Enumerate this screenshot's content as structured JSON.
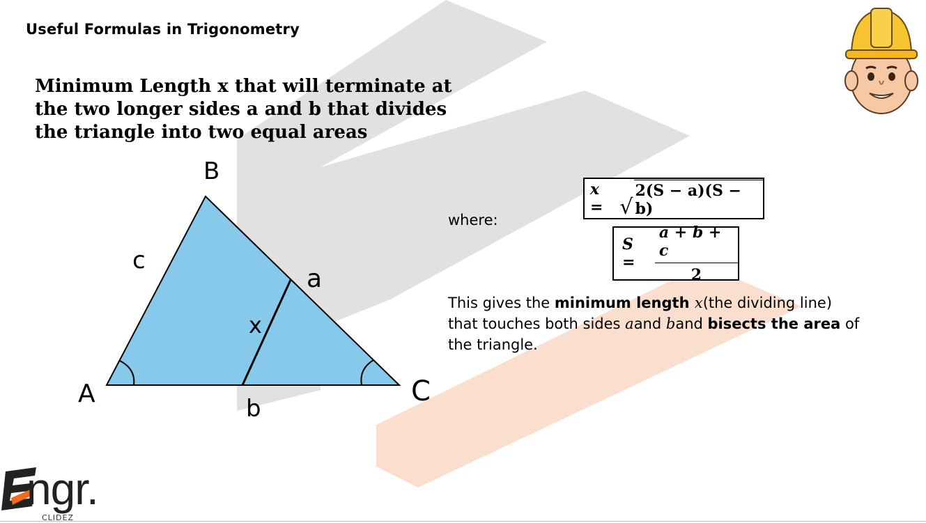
{
  "header": {
    "title": "Useful Formulas in Trigonometry"
  },
  "main": {
    "title_lines": [
      "Minimum Length x that will terminate at",
      "the two longer sides a and b that divides",
      "the triangle into two equal areas"
    ]
  },
  "diagram": {
    "vertex_labels": {
      "A": "A",
      "B": "B",
      "C": "C"
    },
    "side_labels": {
      "a": "a",
      "b": "b",
      "c": "c",
      "x": "x"
    },
    "fill_color": "#86c9eb"
  },
  "formulas": {
    "where_label": "where:",
    "x_lhs": "x =",
    "x_radical": "√",
    "x_radicand": "2(S − a)(S − b)",
    "s_lhs": "S =",
    "s_numerator": "a + b + c",
    "s_denominator": "2"
  },
  "description": {
    "p1": "This gives the ",
    "b1": "minimum length ",
    "i1": "x",
    "p2": "(the dividing line) that touches both sides ",
    "i2": "a",
    "p3": "and ",
    "i3": "b",
    "p4": "and ",
    "b2": "bisects the area",
    "p5": " of the triangle."
  },
  "logo": {
    "text": "ngr.",
    "subtitle": "CLIDEZ",
    "accent": "#f26b1d"
  },
  "mascot": {
    "icon": "engineer-mascot-icon"
  }
}
